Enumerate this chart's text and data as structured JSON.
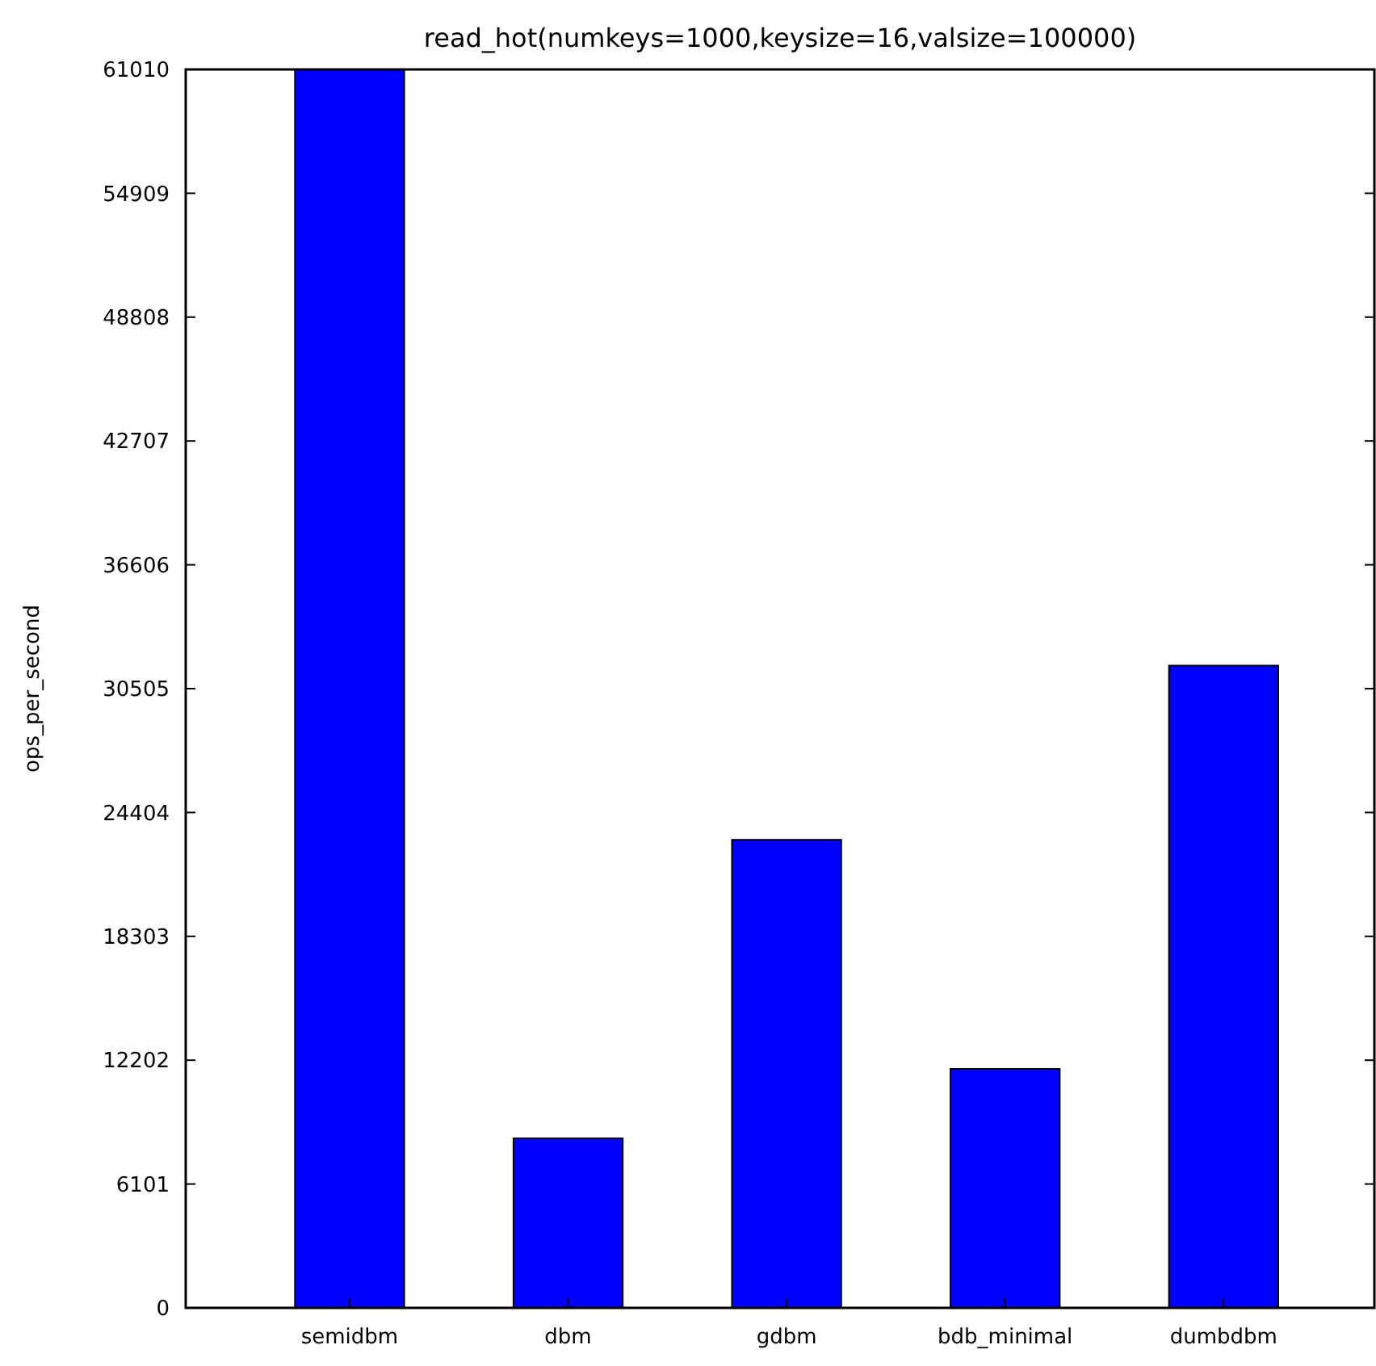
{
  "chart_data": {
    "type": "bar",
    "title": "read_hot(numkeys=1000,keysize=16,valsize=100000)",
    "ylabel": "ops_per_second",
    "categories": [
      "semidbm",
      "dbm",
      "gdbm",
      "bdb_minimal",
      "dumbdbm"
    ],
    "values": [
      61010,
      8350,
      23060,
      11770,
      31640
    ],
    "color": "#0000ff",
    "ylim": [
      0,
      61010
    ],
    "yticks": [
      0,
      6101,
      12202,
      18303,
      24404,
      30505,
      36606,
      42707,
      48808,
      54909,
      61010
    ],
    "grid": false
  }
}
